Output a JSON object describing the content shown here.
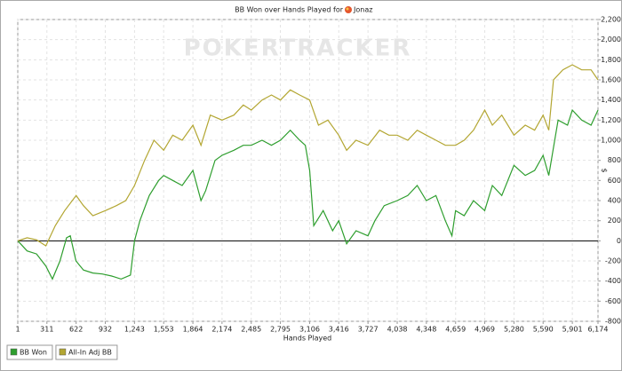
{
  "chart_data": {
    "type": "line",
    "title": "BB Won over Hands Played for",
    "player": "Jonaz",
    "watermark": "POKERTRACKER",
    "x_label": "Hands Played",
    "y_label": "$",
    "xlim": [
      1,
      6174
    ],
    "xticks": [
      1,
      311,
      622,
      932,
      {
        "value": 1243,
        "label": "1,243"
      },
      {
        "value": 1553,
        "label": "1,553"
      },
      {
        "value": 1864,
        "label": "1,864"
      },
      {
        "value": 2174,
        "label": "2,174"
      },
      {
        "value": 2485,
        "label": "2,485"
      },
      {
        "value": 2795,
        "label": "2,795"
      },
      {
        "value": 3106,
        "label": "3,106"
      },
      {
        "value": 3416,
        "label": "3,416"
      },
      {
        "value": 3727,
        "label": "3,727"
      },
      {
        "value": 4038,
        "label": "4,038"
      },
      {
        "value": 4348,
        "label": "4,348"
      },
      {
        "value": 4659,
        "label": "4,659"
      },
      {
        "value": 4969,
        "label": "4,969"
      },
      {
        "value": 5280,
        "label": "5,280"
      },
      {
        "value": 5590,
        "label": "5,590"
      },
      {
        "value": 5901,
        "label": "5,901"
      },
      {
        "value": 6174,
        "label": "6,174"
      }
    ],
    "ylim": [
      -800,
      2200
    ],
    "yticks": [
      -800,
      -600,
      -400,
      -200,
      0,
      200,
      400,
      600,
      800,
      {
        "value": 1000,
        "label": "1,000"
      },
      {
        "value": 1200,
        "label": "1,200"
      },
      {
        "value": 1400,
        "label": "1,400"
      },
      {
        "value": 1600,
        "label": "1,600"
      },
      {
        "value": 1800,
        "label": "1,800"
      },
      {
        "value": 2000,
        "label": "2,000"
      },
      {
        "value": 2200,
        "label": "2,200"
      }
    ],
    "grid": true,
    "legend": "bottom-left",
    "series": [
      {
        "name": "BB Won",
        "color": "#2e9e2e",
        "x": [
          1,
          100,
          200,
          300,
          370,
          450,
          520,
          560,
          620,
          700,
          800,
          900,
          1000,
          1100,
          1200,
          1243,
          1300,
          1400,
          1500,
          1553,
          1650,
          1750,
          1864,
          1950,
          2000,
          2100,
          2174,
          2300,
          2400,
          2485,
          2600,
          2700,
          2795,
          2900,
          3000,
          3060,
          3106,
          3150,
          3250,
          3350,
          3416,
          3500,
          3600,
          3727,
          3800,
          3900,
          4038,
          4150,
          4250,
          4348,
          4450,
          4550,
          4620,
          4659,
          4750,
          4850,
          4969,
          5050,
          5150,
          5280,
          5400,
          5500,
          5590,
          5650,
          5750,
          5850,
          5901,
          6000,
          6100,
          6174
        ],
        "values": [
          0,
          -100,
          -130,
          -250,
          -380,
          -200,
          30,
          50,
          -200,
          -290,
          -320,
          -330,
          -350,
          -380,
          -340,
          0,
          200,
          450,
          600,
          650,
          600,
          550,
          700,
          400,
          500,
          800,
          850,
          900,
          950,
          950,
          1000,
          950,
          1000,
          1100,
          1000,
          950,
          700,
          150,
          300,
          100,
          200,
          -30,
          100,
          50,
          200,
          350,
          400,
          450,
          550,
          400,
          450,
          200,
          50,
          300,
          250,
          400,
          300,
          550,
          450,
          750,
          650,
          700,
          850,
          650,
          1200,
          1150,
          1300,
          1200,
          1150,
          1300
        ]
      },
      {
        "name": "All-In Adj BB",
        "color": "#b3a632",
        "x": [
          1,
          100,
          200,
          300,
          400,
          500,
          622,
          700,
          800,
          932,
          1050,
          1150,
          1243,
          1350,
          1450,
          1553,
          1650,
          1750,
          1864,
          1950,
          2050,
          2174,
          2300,
          2400,
          2485,
          2600,
          2700,
          2795,
          2900,
          3000,
          3106,
          3200,
          3300,
          3416,
          3500,
          3600,
          3727,
          3850,
          3950,
          4038,
          4150,
          4250,
          4348,
          4450,
          4550,
          4659,
          4750,
          4850,
          4969,
          5050,
          5150,
          5280,
          5400,
          5500,
          5590,
          5650,
          5700,
          5800,
          5901,
          6000,
          6100,
          6174
        ],
        "values": [
          0,
          30,
          10,
          -50,
          150,
          300,
          450,
          350,
          250,
          300,
          350,
          400,
          550,
          800,
          1000,
          900,
          1050,
          1000,
          1150,
          950,
          1250,
          1200,
          1250,
          1350,
          1300,
          1400,
          1450,
          1400,
          1500,
          1450,
          1400,
          1150,
          1200,
          1050,
          900,
          1000,
          950,
          1100,
          1050,
          1050,
          1000,
          1100,
          1050,
          1000,
          950,
          950,
          1000,
          1100,
          1300,
          1150,
          1250,
          1050,
          1150,
          1100,
          1250,
          1100,
          1600,
          1700,
          1750,
          1700,
          1700,
          1600
        ]
      }
    ]
  }
}
